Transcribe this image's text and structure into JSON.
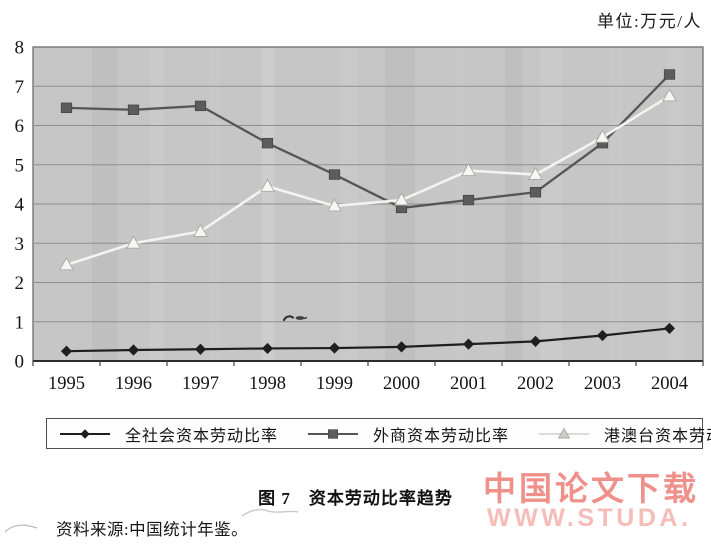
{
  "figure": {
    "caption_label": "图 7",
    "caption_title": "资本劳动比率趋势",
    "source": "资料来源:中国统计年鉴。"
  },
  "watermark": {
    "line1": "中国论文下载",
    "line2": "WWW.STUDA."
  },
  "chart_data": {
    "type": "line",
    "title": "资本劳动比率趋势",
    "unit_label": "单位:万元/人",
    "categories": [
      "1995",
      "1996",
      "1997",
      "1998",
      "1999",
      "2000",
      "2001",
      "2002",
      "2003",
      "2004"
    ],
    "series": [
      {
        "name": "全社会资本劳动比率",
        "marker": "diamond",
        "color": "#1f1f1f",
        "line_color": "#1f1f1f",
        "values": [
          0.25,
          0.28,
          0.3,
          0.32,
          0.33,
          0.36,
          0.43,
          0.5,
          0.65,
          0.83
        ]
      },
      {
        "name": "外商资本劳动比率",
        "marker": "square",
        "color": "#5c5c5c",
        "line_color": "#565656",
        "values": [
          6.45,
          6.4,
          6.5,
          5.55,
          4.75,
          3.9,
          4.1,
          4.3,
          5.55,
          7.3
        ]
      },
      {
        "name": "港澳台资本劳动比率",
        "marker": "triangle",
        "color": "#f6f6f2",
        "marker_stroke": "#a9a9a3",
        "line_color": "#f3f3ef",
        "legend_marker_color": "#cdcdc7",
        "legend_line_color": "#dcdcd6",
        "values": [
          2.45,
          3.0,
          3.3,
          4.45,
          3.95,
          4.1,
          4.85,
          4.75,
          5.7,
          6.75
        ]
      }
    ],
    "ylim": [
      0,
      8
    ],
    "yticks": [
      0,
      1,
      2,
      3,
      4,
      5,
      6,
      7,
      8
    ],
    "grid": "horizontal",
    "legend_position": "bottom",
    "plot_background": "#c6c6c6",
    "gridline_color": "#8f8f8f",
    "axis_color": "#2d2d2d"
  }
}
